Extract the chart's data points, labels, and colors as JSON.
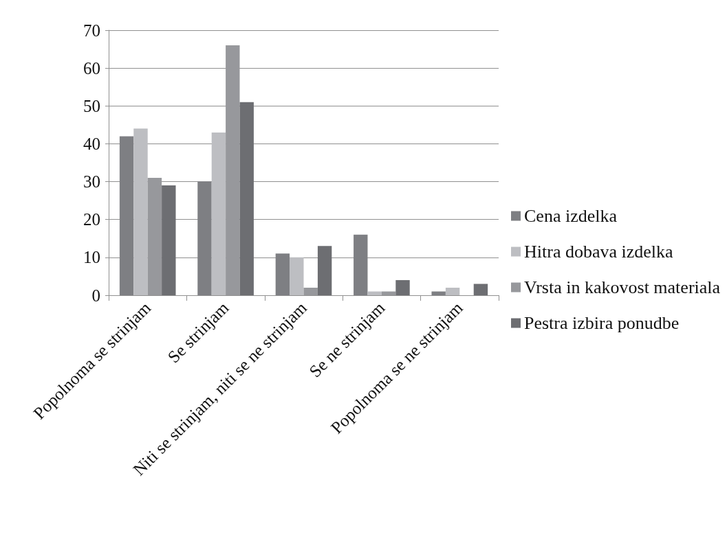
{
  "chart_data": {
    "type": "bar",
    "categories": [
      "Popolnoma se strinjam",
      "Se strinjam",
      "Niti se strinjam, niti se ne strinjam",
      "Se ne strinjam",
      "Popolnoma se ne strinjam"
    ],
    "series": [
      {
        "name": "Cena izdelka",
        "color": "#7e7f83",
        "values": [
          42,
          30,
          11,
          16,
          1
        ]
      },
      {
        "name": "Hitra dobava izdelka",
        "color": "#bdbec2",
        "values": [
          44,
          43,
          10,
          1,
          2
        ]
      },
      {
        "name": "Vrsta in kakovost materiala",
        "color": "#97989c",
        "values": [
          31,
          66,
          2,
          1,
          0
        ]
      },
      {
        "name": "Pestra izbira ponudbe",
        "color": "#6d6e72",
        "values": [
          29,
          51,
          13,
          4,
          3
        ]
      }
    ],
    "ylim": [
      0,
      70
    ],
    "yticks": [
      0,
      10,
      20,
      30,
      40,
      50,
      60,
      70
    ],
    "grid": "y",
    "legend": "right"
  }
}
